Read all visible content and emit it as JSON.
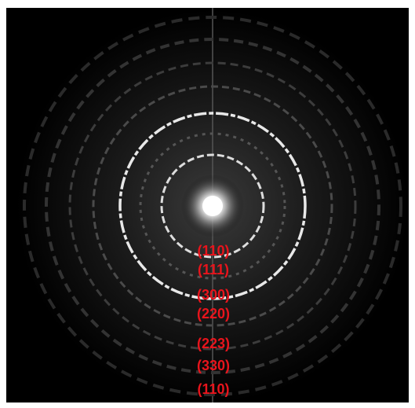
{
  "labels": [
    "(110)",
    "(111)",
    "(300)",
    "(220)",
    "(223)",
    "(330)",
    "(110)"
  ]
}
